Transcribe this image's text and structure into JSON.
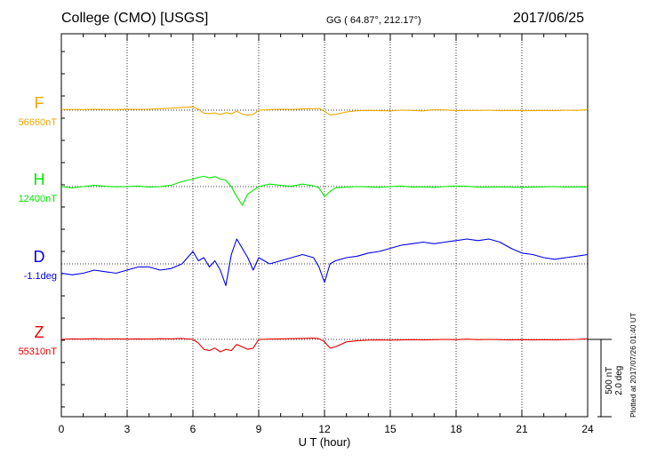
{
  "header": {
    "title": "College (CMO)  [USGS]",
    "coords": "GG ( 64.87°, 212.17°)",
    "date": "2017/06/25"
  },
  "footer": {
    "xlabel": "U T (hour)",
    "plotted": "Plotted at 2017/07/26 01:40 UT"
  },
  "scale": {
    "line1": "500 nT",
    "line2": "2.0 deg"
  },
  "chart_data": {
    "type": "line",
    "title": "College (CMO)  [USGS]",
    "xlabel": "U T (hour)",
    "ylabel": "",
    "xlim": [
      0,
      24
    ],
    "x_ticks": [
      "0",
      "3",
      "6",
      "9",
      "12",
      "15",
      "18",
      "21",
      "24"
    ],
    "grid": true,
    "x": [
      0,
      0.5,
      1,
      1.5,
      2,
      2.5,
      3,
      3.5,
      4,
      4.5,
      5,
      5.5,
      6,
      6.25,
      6.5,
      6.75,
      7,
      7.25,
      7.5,
      7.75,
      8,
      8.25,
      8.5,
      8.75,
      9,
      9.5,
      10,
      10.5,
      11,
      11.5,
      11.75,
      12,
      12.25,
      12.5,
      13,
      13.5,
      14,
      14.5,
      15,
      15.5,
      16,
      16.5,
      17,
      17.5,
      18,
      18.5,
      19,
      19.5,
      20,
      20.5,
      21,
      21.5,
      22,
      22.5,
      23,
      23.5,
      24
    ],
    "series": [
      {
        "name": "F",
        "baseline_label": "56660nT",
        "color": "#f0a800",
        "unit": "nT",
        "values": [
          6,
          6,
          4,
          8,
          6,
          4,
          8,
          6,
          8,
          12,
          16,
          22,
          26,
          8,
          -24,
          -28,
          -22,
          -36,
          -20,
          -30,
          -8,
          -32,
          -40,
          -34,
          0,
          4,
          8,
          6,
          10,
          12,
          14,
          -10,
          -38,
          -34,
          -14,
          -4,
          -2,
          -4,
          -6,
          0,
          -2,
          -6,
          4,
          2,
          -4,
          -2,
          -2,
          0,
          -4,
          -2,
          -4,
          -4,
          -2,
          -4,
          0,
          -2,
          4
        ]
      },
      {
        "name": "H",
        "baseline_label": "12400nT",
        "color": "#00e800",
        "unit": "nT",
        "values": [
          0,
          -10,
          0,
          10,
          2,
          -2,
          0,
          4,
          -4,
          0,
          10,
          40,
          60,
          75,
          82,
          70,
          80,
          60,
          50,
          0,
          -80,
          -150,
          -60,
          -30,
          0,
          20,
          10,
          2,
          20,
          6,
          -10,
          -80,
          -40,
          -10,
          -4,
          0,
          -2,
          -6,
          0,
          4,
          -4,
          -2,
          -6,
          0,
          4,
          2,
          -4,
          -4,
          -2,
          -4,
          -6,
          -4,
          -2,
          0,
          -4,
          -2,
          -4
        ]
      },
      {
        "name": "D",
        "baseline_label": "-1.1deg",
        "color": "#0000e8",
        "unit": "deg",
        "values": [
          -1.4,
          -1.45,
          -1.4,
          -1.3,
          -1.35,
          -1.4,
          -1.3,
          -1.2,
          -1.2,
          -1.3,
          -1.25,
          -1.1,
          -0.7,
          -1.0,
          -0.9,
          -1.2,
          -1.0,
          -1.3,
          -1.8,
          -0.8,
          -0.3,
          -0.6,
          -0.9,
          -1.3,
          -0.9,
          -1.1,
          -1.0,
          -0.9,
          -0.8,
          -0.9,
          -1.2,
          -1.7,
          -1.1,
          -1.0,
          -0.9,
          -0.85,
          -0.75,
          -0.7,
          -0.6,
          -0.5,
          -0.45,
          -0.4,
          -0.45,
          -0.4,
          -0.35,
          -0.3,
          -0.35,
          -0.3,
          -0.4,
          -0.6,
          -0.75,
          -0.8,
          -0.9,
          -0.95,
          -0.9,
          -0.85,
          -0.8
        ]
      },
      {
        "name": "Z",
        "baseline_label": "55310nT",
        "color": "#e80000",
        "unit": "nT",
        "values": [
          0,
          4,
          2,
          6,
          2,
          4,
          2,
          4,
          2,
          6,
          4,
          8,
          0,
          -30,
          -80,
          -90,
          -70,
          -100,
          -80,
          -90,
          -40,
          -60,
          -80,
          -70,
          0,
          2,
          4,
          6,
          8,
          10,
          6,
          -20,
          -70,
          -60,
          -20,
          -10,
          -6,
          -4,
          -6,
          -4,
          -2,
          -4,
          -2,
          0,
          -2,
          2,
          -2,
          0,
          -2,
          -4,
          -2,
          -4,
          -2,
          -4,
          -2,
          0,
          4
        ]
      }
    ]
  }
}
